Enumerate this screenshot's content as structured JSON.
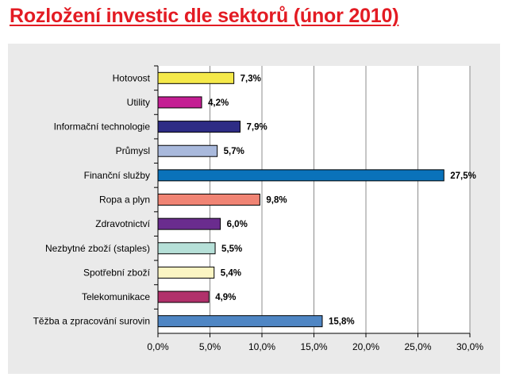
{
  "title": "Rozložení investic dle sektorů (únor 2010)",
  "chart_data": {
    "type": "bar",
    "orientation": "horizontal",
    "title": "Rozložení investic dle sektorů (únor 2010)",
    "xlabel": "",
    "ylabel": "",
    "xlim": [
      0,
      30
    ],
    "x_ticks": [
      0,
      5,
      10,
      15,
      20,
      25,
      30
    ],
    "x_tick_labels": [
      "0,0%",
      "5,0%",
      "10,0%",
      "15,0%",
      "20,0%",
      "25,0%",
      "30,0%"
    ],
    "grid": true,
    "legend": "none",
    "categories": [
      "Hotovost",
      "Utility",
      "Informační technologie",
      "Průmysl",
      "Finanční služby",
      "Ropa a plyn",
      "Zdravotnictví",
      "Nezbytné zboží (staples)",
      "Spotřební zboží",
      "Telekomunikace",
      "Těžba a zpracování surovin"
    ],
    "values": [
      7.3,
      4.2,
      7.9,
      5.7,
      27.5,
      9.8,
      6.0,
      5.5,
      5.4,
      4.9,
      15.8
    ],
    "value_labels": [
      "7,3%",
      "4,2%",
      "7,9%",
      "5,7%",
      "27,5%",
      "9,8%",
      "6,0%",
      "5,5%",
      "5,4%",
      "4,9%",
      "15,8%"
    ],
    "colors": [
      "#f5e94a",
      "#c41e93",
      "#2e2c85",
      "#a9b9dc",
      "#0a72ba",
      "#f08474",
      "#6a2c8e",
      "#b6e0d8",
      "#fbf5c3",
      "#b1316b",
      "#4f86c4"
    ]
  }
}
